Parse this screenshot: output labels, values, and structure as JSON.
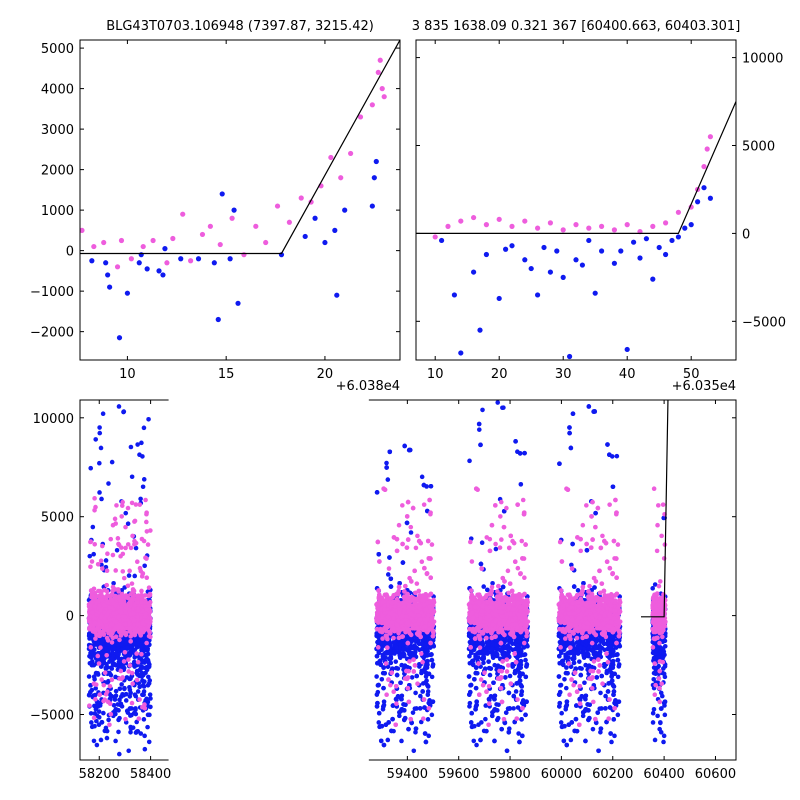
{
  "titles": {
    "left": "BLG43T0703.106948 (7397.87, 3215.42)",
    "right": "3 835 1638.09 0.321 367 [60400.663, 60403.301]"
  },
  "colors": {
    "blue": "#0f1af0",
    "pink": "#ee5ddd",
    "model": "#000000"
  },
  "chart_data": [
    {
      "type": "scatter",
      "panel": "top-left zoom",
      "xlim": [
        7.6,
        23.8
      ],
      "ylim": [
        -2700,
        5200
      ],
      "x_ticks": [
        10,
        15,
        20
      ],
      "y_ticks": [
        -2000,
        -1000,
        0,
        1000,
        2000,
        3000,
        4000,
        5000
      ],
      "x_offset_label": "+6.038e4",
      "y_axis_side": "left",
      "model_line": {
        "x": [
          7.6,
          17.8,
          23.8
        ],
        "y": [
          -70,
          -70,
          5200
        ]
      },
      "series": [
        {
          "name": "",
          "color": "blue",
          "x": [
            8.2,
            8.9,
            9.0,
            9.1,
            9.6,
            10.0,
            10.6,
            10.7,
            11.0,
            11.6,
            11.8,
            11.9,
            12.7,
            13.6,
            14.4,
            14.6,
            14.8,
            15.2,
            15.4,
            15.6,
            17.8,
            19.0,
            19.5,
            20.0,
            20.5,
            20.6,
            21.0,
            22.4,
            22.5,
            22.6
          ],
          "y": [
            -250,
            -300,
            -600,
            -900,
            -2150,
            -1050,
            -300,
            -100,
            -450,
            -500,
            -600,
            50,
            -200,
            -200,
            -300,
            -1700,
            1400,
            -200,
            1000,
            -1300,
            -100,
            350,
            800,
            200,
            500,
            -1100,
            1000,
            1100,
            1800,
            2200
          ]
        },
        {
          "name": "",
          "color": "pink",
          "x": [
            7.7,
            8.3,
            8.8,
            9.5,
            9.7,
            10.2,
            10.8,
            11.3,
            12.0,
            12.3,
            12.8,
            13.2,
            13.8,
            14.2,
            14.7,
            15.3,
            15.9,
            16.5,
            17.0,
            17.6,
            18.2,
            18.8,
            19.3,
            19.8,
            20.3,
            20.8,
            21.3,
            21.8,
            22.4,
            22.7,
            22.8,
            22.9,
            23.0
          ],
          "y": [
            500,
            100,
            200,
            -400,
            250,
            -200,
            100,
            250,
            -300,
            300,
            900,
            -250,
            400,
            600,
            150,
            800,
            -100,
            600,
            200,
            1100,
            700,
            1300,
            1200,
            1600,
            2300,
            1800,
            2400,
            3300,
            3600,
            4400,
            4700,
            4000,
            3800
          ]
        }
      ]
    },
    {
      "type": "scatter",
      "panel": "top-right zoom",
      "xlim": [
        7,
        57
      ],
      "ylim": [
        -7200,
        11000
      ],
      "x_ticks": [
        10,
        20,
        30,
        40,
        50
      ],
      "y_ticks": [
        -5000,
        0,
        5000,
        10000
      ],
      "x_offset_label": "+6.035e4",
      "y_axis_side": "right",
      "model_line": {
        "x": [
          7,
          48,
          57
        ],
        "y": [
          0,
          0,
          7500
        ]
      },
      "series": [
        {
          "name": "",
          "color": "blue",
          "x": [
            11,
            13,
            14,
            16,
            17,
            18,
            20,
            21,
            22,
            24,
            25,
            26,
            27,
            28,
            29,
            30,
            31,
            32,
            33,
            34,
            35,
            36,
            38,
            39,
            40,
            41,
            42,
            43,
            44,
            45,
            46,
            47,
            48,
            49,
            50,
            51,
            52,
            53
          ],
          "y": [
            -400,
            -3500,
            -6800,
            -2200,
            -5500,
            -1200,
            -3700,
            -900,
            -700,
            -1500,
            -2000,
            -3500,
            -800,
            -2200,
            -1000,
            -2500,
            -7000,
            -1500,
            -1800,
            -400,
            -3400,
            -1000,
            -1700,
            -1000,
            -6600,
            -500,
            -1400,
            -300,
            -2600,
            -800,
            -1200,
            -400,
            -200,
            300,
            500,
            1800,
            2600,
            2000
          ]
        },
        {
          "name": "",
          "color": "pink",
          "x": [
            10,
            12,
            14,
            16,
            18,
            20,
            22,
            24,
            26,
            28,
            30,
            32,
            34,
            36,
            38,
            40,
            42,
            44,
            46,
            48,
            50,
            51,
            52,
            52.5,
            53
          ],
          "y": [
            -200,
            400,
            700,
            900,
            500,
            800,
            400,
            700,
            300,
            600,
            200,
            500,
            300,
            400,
            200,
            500,
            100,
            400,
            600,
            1200,
            1500,
            2500,
            3800,
            4800,
            5500
          ]
        }
      ]
    },
    {
      "type": "scatter",
      "panel": "bottom full light curve",
      "xlim": [
        58125,
        60680
      ],
      "ylim": [
        -7300,
        10900
      ],
      "x_ticks": [
        58200,
        58400,
        59400,
        59600,
        59800,
        60000,
        60200,
        60400,
        60600
      ],
      "y_ticks": [
        -5000,
        0,
        5000,
        10000
      ],
      "x_break": [
        58470,
        59250
      ],
      "model_line": {
        "x": [
          60310,
          60400,
          60415
        ],
        "y": [
          -60,
          -60,
          10900
        ]
      },
      "seasons": [
        {
          "start": 58160,
          "end": 58400,
          "low": -7000,
          "high": 10600
        },
        {
          "start": 59280,
          "end": 59505,
          "low": -7000,
          "high": 8600
        },
        {
          "start": 59640,
          "end": 59870,
          "low": -7200,
          "high": 10800
        },
        {
          "start": 59990,
          "end": 60230,
          "low": -7200,
          "high": 10600
        },
        {
          "start": 60355,
          "end": 60405,
          "low": -7000,
          "high": 6500
        }
      ]
    }
  ]
}
